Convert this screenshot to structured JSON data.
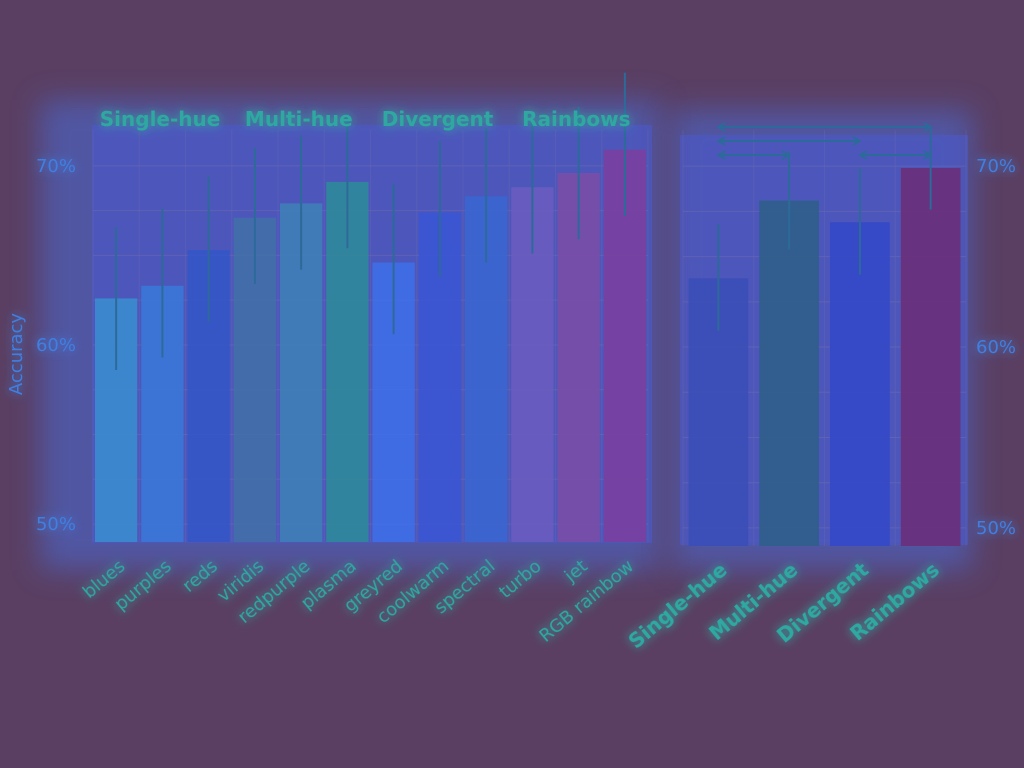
{
  "colors": {
    "background": "#5a3f62",
    "panel": "#3d5fd8",
    "grid": "#6a6ab0",
    "text": "#2fa8a0",
    "axis_text": "#3f7fe0",
    "error_bar": "#2c6a9a"
  },
  "chart_data": [
    {
      "type": "bar",
      "title": "",
      "ylabel": "Accuracy",
      "xlabel": "",
      "ylim": [
        49,
        72
      ],
      "yticks": [
        "50%",
        "60%",
        "70%"
      ],
      "ytick_values": [
        50,
        60,
        70
      ],
      "group_labels": [
        "Single-hue",
        "Multi-hue",
        "Divergent",
        "Rainbows"
      ],
      "categories": [
        "blues",
        "purples",
        "reds",
        "viridis",
        "redpurple",
        "plasma",
        "greyred",
        "coolwarm",
        "spectral",
        "turbo",
        "jet",
        "RGB rainbow"
      ],
      "values": [
        62.6,
        63.3,
        65.3,
        67.1,
        67.9,
        69.1,
        64.6,
        67.4,
        68.3,
        68.8,
        69.6,
        70.9
      ],
      "error_low": [
        58.6,
        59.3,
        61.3,
        63.4,
        64.2,
        65.4,
        60.6,
        63.8,
        64.6,
        65.1,
        65.9,
        67.2
      ],
      "error_high": [
        66.6,
        67.6,
        69.4,
        71.0,
        71.7,
        72.9,
        69.0,
        71.4,
        72.1,
        72.5,
        73.3,
        75.2
      ],
      "bar_colors": [
        "#3b8ccf",
        "#3a78d8",
        "#3557c8",
        "#4370a8",
        "#3f7fb8",
        "#2f8a9a",
        "#3f6fe8",
        "#3b55d4",
        "#3a66d0",
        "#6a5cc0",
        "#7a4ea8",
        "#7a3fa0"
      ],
      "grid": true
    },
    {
      "type": "bar",
      "title": "",
      "ylabel": "",
      "xlabel": "",
      "ylim": [
        49,
        72
      ],
      "yticks": [
        "50%",
        "60%",
        "70%"
      ],
      "ytick_values": [
        50,
        60,
        70
      ],
      "categories": [
        "Single-hue",
        "Multi-hue",
        "Divergent",
        "Rainbows"
      ],
      "values": [
        63.8,
        68.1,
        66.9,
        69.9
      ],
      "error_low": [
        60.9,
        65.4,
        64.0,
        67.6
      ],
      "error_high": [
        66.8,
        70.8,
        69.9,
        72.2
      ],
      "bar_colors": [
        "#3b4fb8",
        "#2f5f8a",
        "#3448c8",
        "#6a2f7a"
      ],
      "comparisons": [
        [
          0,
          3
        ],
        [
          0,
          2
        ],
        [
          0,
          1
        ],
        [
          2,
          3
        ]
      ],
      "grid": true
    }
  ]
}
